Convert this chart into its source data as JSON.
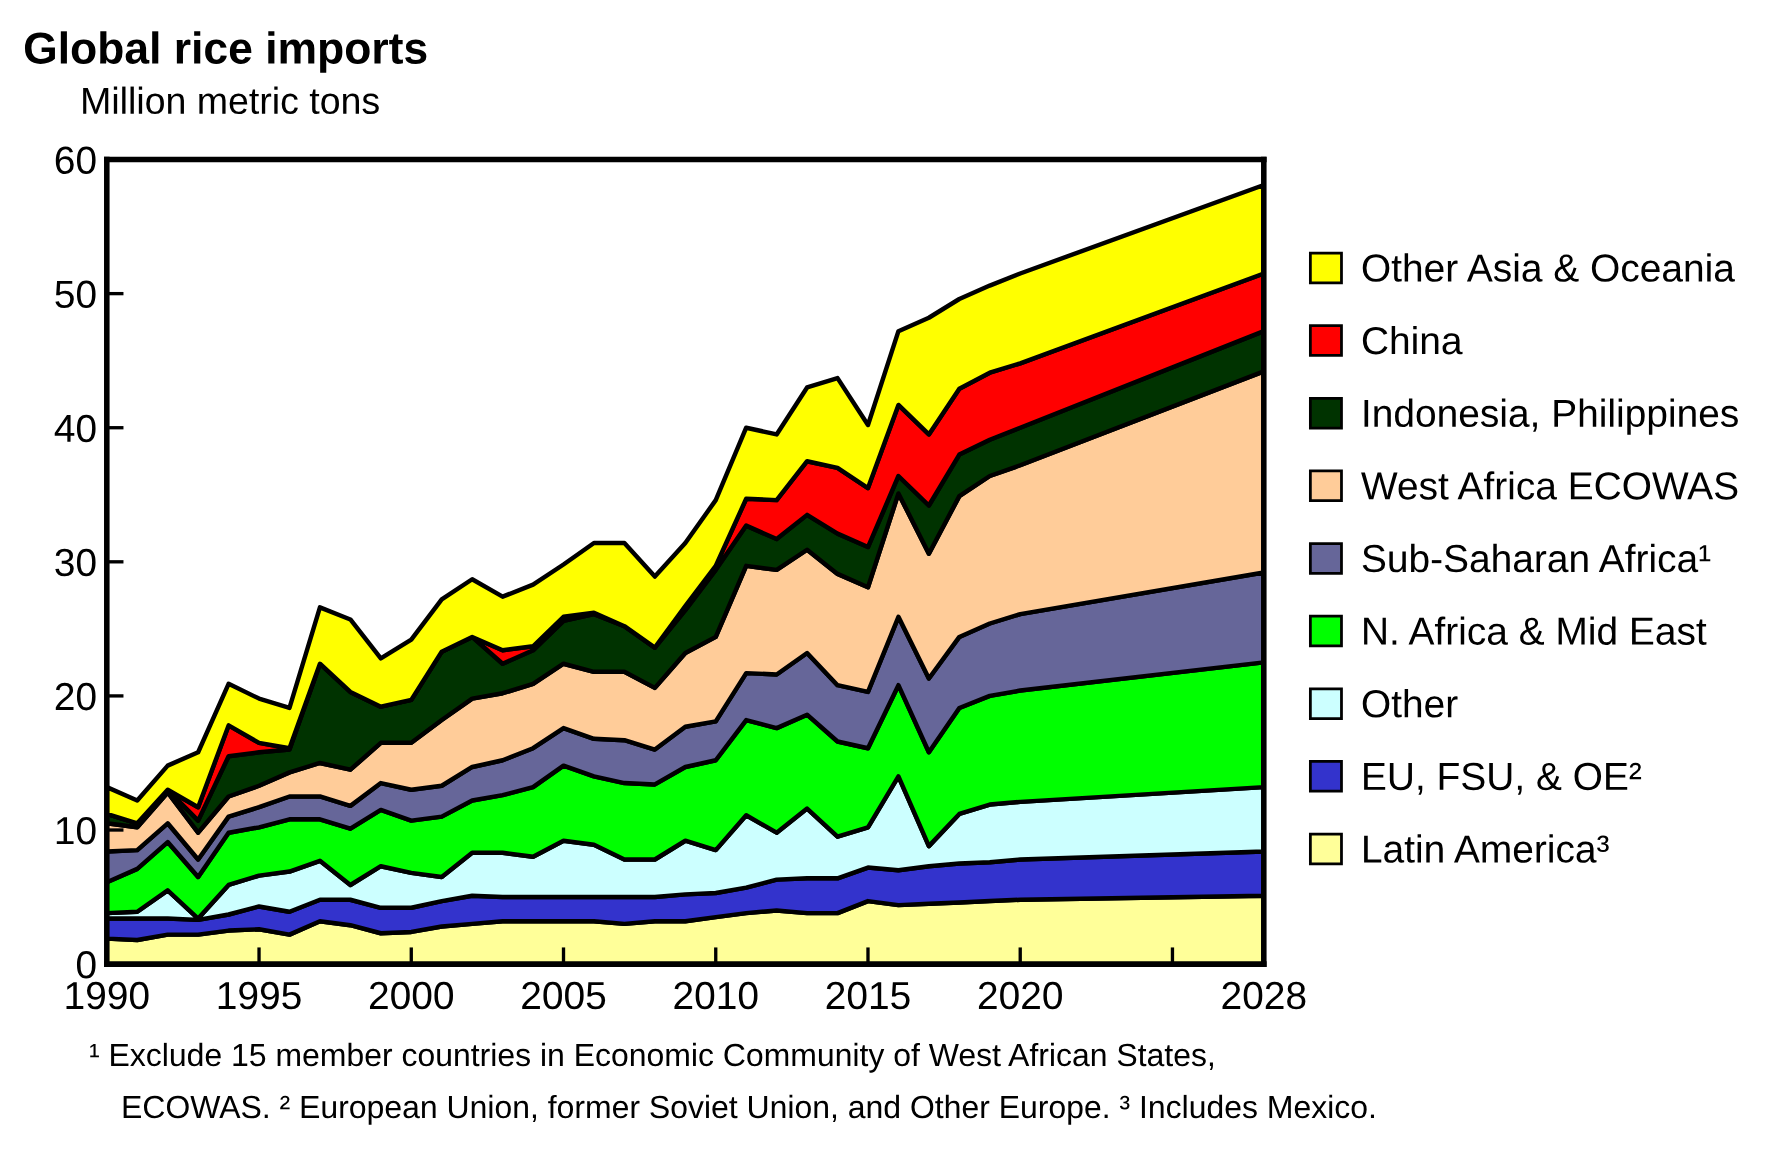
{
  "chart_data": {
    "type": "area",
    "stacked": true,
    "title": "Global rice imports",
    "ylabel": "Million metric tons",
    "x": [
      1990,
      1991,
      1992,
      1993,
      1994,
      1995,
      1996,
      1997,
      1998,
      1999,
      2000,
      2001,
      2002,
      2003,
      2004,
      2005,
      2006,
      2007,
      2008,
      2009,
      2010,
      2011,
      2012,
      2013,
      2014,
      2015,
      2016,
      2017,
      2018,
      2019,
      2020,
      2028
    ],
    "series": [
      {
        "name": "Latin America³",
        "color": "#ffff99",
        "values": [
          1.9,
          1.8,
          2.2,
          2.2,
          2.5,
          2.6,
          2.2,
          3.2,
          2.9,
          2.3,
          2.4,
          2.8,
          3.0,
          3.2,
          3.2,
          3.2,
          3.2,
          3.0,
          3.2,
          3.2,
          3.5,
          3.8,
          4.0,
          3.8,
          3.8,
          4.7,
          4.4,
          4.5,
          4.6,
          4.7,
          4.8,
          5.1
        ]
      },
      {
        "name": "EU, FSU, & OE²",
        "color": "#3333cc",
        "values": [
          1.5,
          1.6,
          1.2,
          1.1,
          1.2,
          1.7,
          1.7,
          1.6,
          1.9,
          1.9,
          1.8,
          1.9,
          2.1,
          1.8,
          1.8,
          1.8,
          1.8,
          2.0,
          1.8,
          2.0,
          1.8,
          1.9,
          2.3,
          2.6,
          2.6,
          2.5,
          2.6,
          2.8,
          2.9,
          2.9,
          3.0,
          3.3
        ]
      },
      {
        "name": "Other",
        "color": "#ccffff",
        "values": [
          0.4,
          0.5,
          2.1,
          0.1,
          2.2,
          2.3,
          3.0,
          2.9,
          1.1,
          3.1,
          2.6,
          1.8,
          3.2,
          3.3,
          3.0,
          4.2,
          3.9,
          2.8,
          2.8,
          4.0,
          3.2,
          5.4,
          3.5,
          5.2,
          3.1,
          3.0,
          7.0,
          1.5,
          3.7,
          4.3,
          4.3,
          4.8
        ]
      },
      {
        "name": "N. Africa & Mid East",
        "color": "#00ff00",
        "values": [
          2.3,
          3.2,
          3.6,
          3.1,
          3.9,
          3.6,
          3.9,
          3.1,
          4.2,
          4.2,
          3.9,
          4.5,
          3.9,
          4.3,
          5.2,
          5.6,
          5.1,
          5.7,
          5.6,
          5.5,
          6.7,
          7.1,
          7.8,
          7.0,
          7.1,
          5.9,
          6.8,
          7.0,
          7.9,
          8.1,
          8.3,
          9.3
        ]
      },
      {
        "name": "Sub-Saharan Africa¹",
        "color": "#666699",
        "values": [
          2.3,
          1.4,
          1.4,
          1.3,
          1.2,
          1.5,
          1.7,
          1.7,
          1.7,
          2.0,
          2.3,
          2.3,
          2.5,
          2.6,
          2.9,
          2.8,
          2.8,
          3.2,
          2.6,
          3.0,
          2.9,
          3.5,
          4.0,
          4.6,
          4.2,
          4.2,
          5.1,
          5.5,
          5.3,
          5.4,
          5.7,
          6.7
        ]
      },
      {
        "name": "West Africa ECOWAS",
        "color": "#ffcc99",
        "values": [
          2.1,
          1.7,
          2.3,
          2.0,
          1.5,
          1.6,
          1.8,
          2.5,
          2.7,
          3.0,
          3.5,
          4.9,
          5.1,
          5.0,
          4.8,
          4.8,
          5.0,
          5.1,
          4.6,
          5.5,
          6.3,
          8.0,
          7.8,
          7.7,
          8.3,
          7.8,
          9.2,
          9.3,
          10.5,
          11.0,
          11.1,
          15.0
        ]
      },
      {
        "name": "Indonesia, Philippines",
        "color": "#003300",
        "values": [
          0.7,
          0.3,
          0.2,
          0.9,
          3.0,
          2.5,
          1.7,
          7.4,
          5.8,
          2.7,
          3.2,
          5.1,
          4.6,
          2.2,
          2.5,
          3.2,
          4.3,
          3.4,
          3.0,
          3.2,
          5.0,
          3.0,
          2.3,
          2.6,
          3.0,
          3.0,
          1.3,
          3.6,
          3.1,
          2.7,
          2.8,
          3.0
        ]
      },
      {
        "name": "China",
        "color": "#ff0000",
        "values": [
          0,
          0,
          0,
          1.0,
          2.3,
          0.7,
          0.1,
          0,
          0,
          0,
          0,
          0,
          0,
          1.0,
          0.3,
          0.3,
          0.1,
          0,
          0,
          0.3,
          0.3,
          2.0,
          2.9,
          4.0,
          4.9,
          4.4,
          5.3,
          5.3,
          4.9,
          5.0,
          4.8,
          4.3
        ]
      },
      {
        "name": "Other Asia & Oceania",
        "color": "#ffff00",
        "values": [
          2.0,
          1.7,
          1.8,
          4.1,
          3.1,
          3.3,
          3.0,
          4.2,
          5.4,
          3.6,
          4.5,
          3.9,
          4.3,
          4.0,
          4.6,
          3.9,
          5.2,
          6.2,
          5.3,
          4.7,
          4.9,
          5.3,
          4.9,
          5.5,
          6.7,
          4.7,
          5.5,
          8.7,
          6.7,
          6.5,
          6.7,
          6.6
        ]
      }
    ],
    "xlim": [
      1990,
      2028
    ],
    "ylim": [
      0,
      60
    ],
    "xticks": [
      1990,
      1995,
      2000,
      2005,
      2010,
      2015,
      2020,
      {
        "value": 2025,
        "label": null
      },
      2028
    ],
    "yticks": [
      0,
      10,
      20,
      30,
      40,
      50,
      60
    ],
    "grid": false,
    "legend": "right",
    "annotations": [
      "¹ Exclude 15 member countries in Economic Community of West African States,",
      "ECOWAS. ² European Union, former Soviet Union, and Other Europe. ³ Includes Mexico."
    ]
  }
}
